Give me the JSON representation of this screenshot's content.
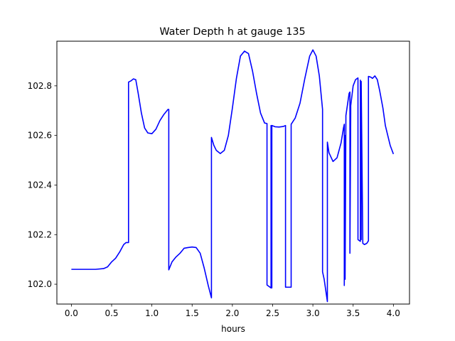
{
  "chart_data": {
    "type": "line",
    "title": "Water Depth h at gauge 135",
    "xlabel": "hours",
    "ylabel": "",
    "xlim": [
      -0.18,
      4.2
    ],
    "ylim": [
      101.92,
      102.98
    ],
    "x_ticks": [
      0.0,
      0.5,
      1.0,
      1.5,
      2.0,
      2.5,
      3.0,
      3.5,
      4.0
    ],
    "x_tick_labels": [
      "0.0",
      "0.5",
      "1.0",
      "1.5",
      "2.0",
      "2.5",
      "3.0",
      "3.5",
      "4.0"
    ],
    "y_ticks": [
      102.0,
      102.2,
      102.4,
      102.6,
      102.8
    ],
    "y_tick_labels": [
      "102.0",
      "102.2",
      "102.4",
      "102.6",
      "102.8"
    ],
    "grid": false,
    "series": [
      {
        "color": "#0000ff",
        "x": [
          0.0,
          0.1,
          0.2,
          0.3,
          0.4,
          0.45,
          0.5,
          0.55,
          0.6,
          0.65,
          0.68,
          0.7,
          0.71,
          0.71,
          0.74,
          0.77,
          0.8,
          0.83,
          0.87,
          0.91,
          0.95,
          1.0,
          1.05,
          1.1,
          1.15,
          1.2,
          1.21,
          1.21,
          1.25,
          1.3,
          1.35,
          1.4,
          1.45,
          1.5,
          1.55,
          1.6,
          1.65,
          1.7,
          1.74,
          1.74,
          1.77,
          1.8,
          1.85,
          1.9,
          1.95,
          2.0,
          2.05,
          2.1,
          2.15,
          2.2,
          2.25,
          2.3,
          2.35,
          2.4,
          2.43,
          2.43,
          2.48,
          2.48,
          2.49,
          2.49,
          2.53,
          2.58,
          2.63,
          2.66,
          2.66,
          2.73,
          2.73,
          2.78,
          2.84,
          2.9,
          2.96,
          3.0,
          3.04,
          3.08,
          3.12,
          3.12,
          3.14,
          3.18,
          3.18,
          3.2,
          3.25,
          3.3,
          3.35,
          3.38,
          3.39,
          3.39,
          3.4,
          3.4,
          3.41,
          3.41,
          3.45,
          3.46,
          3.46,
          3.47,
          3.47,
          3.5,
          3.53,
          3.56,
          3.56,
          3.58,
          3.59,
          3.59,
          3.6,
          3.6,
          3.62,
          3.62,
          3.64,
          3.67,
          3.69,
          3.69,
          3.72,
          3.74,
          3.77,
          3.8,
          3.83,
          3.87,
          3.9,
          3.93,
          3.96,
          4.0
        ],
        "y": [
          102.06,
          102.06,
          102.06,
          102.06,
          102.063,
          102.07,
          102.09,
          102.105,
          102.13,
          102.16,
          102.168,
          102.168,
          102.168,
          102.815,
          102.82,
          102.828,
          102.825,
          102.77,
          102.69,
          102.63,
          102.61,
          102.607,
          102.625,
          102.66,
          102.685,
          102.705,
          102.705,
          102.058,
          102.09,
          102.11,
          102.125,
          102.145,
          102.148,
          102.15,
          102.148,
          102.125,
          102.065,
          101.995,
          101.945,
          102.592,
          102.56,
          102.54,
          102.527,
          102.54,
          102.6,
          102.71,
          102.83,
          102.92,
          102.94,
          102.93,
          102.86,
          102.77,
          102.69,
          102.65,
          102.648,
          101.997,
          101.985,
          102.64,
          101.985,
          102.64,
          102.635,
          102.634,
          102.636,
          102.64,
          101.988,
          101.988,
          102.645,
          102.67,
          102.73,
          102.83,
          102.92,
          102.945,
          102.92,
          102.84,
          102.705,
          102.05,
          102.02,
          101.93,
          102.573,
          102.53,
          102.495,
          102.51,
          102.57,
          102.63,
          102.645,
          101.995,
          102.6,
          102.02,
          102.67,
          102.68,
          102.77,
          102.775,
          102.125,
          102.695,
          102.72,
          102.8,
          102.825,
          102.832,
          102.18,
          102.175,
          102.173,
          102.823,
          102.18,
          102.818,
          102.165,
          102.165,
          102.16,
          102.165,
          102.175,
          102.838,
          102.835,
          102.83,
          102.84,
          102.825,
          102.78,
          102.71,
          102.64,
          102.6,
          102.56,
          102.525
        ]
      }
    ]
  }
}
